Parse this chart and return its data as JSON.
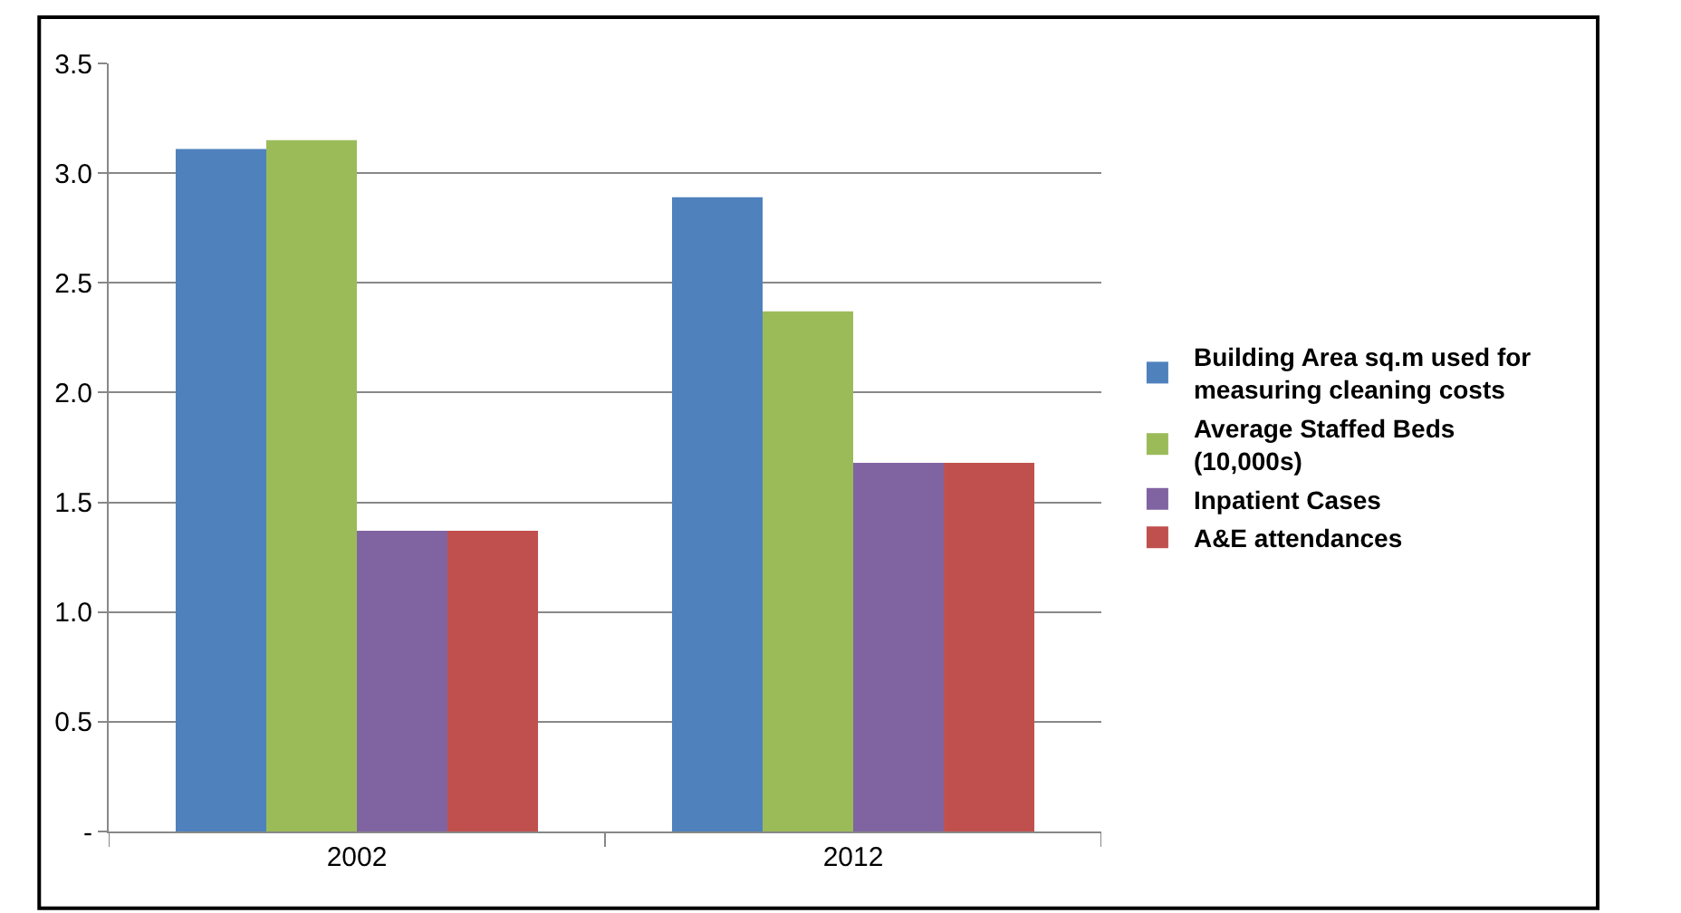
{
  "chart_data": {
    "type": "bar",
    "categories": [
      "2002",
      "2012"
    ],
    "series": [
      {
        "name": "Building Area sq.m used for measuring cleaning costs",
        "color": "#4f81bd",
        "values": [
          3.11,
          2.89
        ]
      },
      {
        "name": "Average Staffed Beds (10,000s)",
        "color": "#9bbb59",
        "values": [
          3.15,
          2.37
        ]
      },
      {
        "name": "Inpatient Cases",
        "color": "#8064a2",
        "values": [
          1.37,
          1.68
        ]
      },
      {
        "name": "A&E attendances",
        "color": "#c0504d",
        "values": [
          1.37,
          1.68
        ]
      }
    ],
    "ylim": [
      0,
      3.5
    ],
    "yticks": [
      {
        "value": 0,
        "label": "-"
      },
      0.5,
      {
        "value": 1,
        "label": "1.0"
      },
      1.5,
      {
        "value": 2,
        "label": "2.0"
      },
      2.5,
      {
        "value": 3,
        "label": "3.0"
      },
      3.5
    ],
    "grid": "y",
    "legend": "right"
  }
}
